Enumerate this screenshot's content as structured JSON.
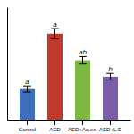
{
  "chart_data": {
    "type": "bar",
    "categories": [
      "Control",
      "AED",
      "AED+Aq.ex.",
      "AED+L.E"
    ],
    "values": [
      1.5,
      4.2,
      2.9,
      2.1
    ],
    "errors": [
      0.15,
      0.25,
      0.18,
      0.16
    ],
    "colors": [
      "#3e6fba",
      "#c0392b",
      "#7db843",
      "#7b5ea7"
    ],
    "annotations": [
      "a",
      "a",
      "ab",
      "b"
    ],
    "ylim": [
      0,
      5.5
    ],
    "tick_labels": "x"
  }
}
